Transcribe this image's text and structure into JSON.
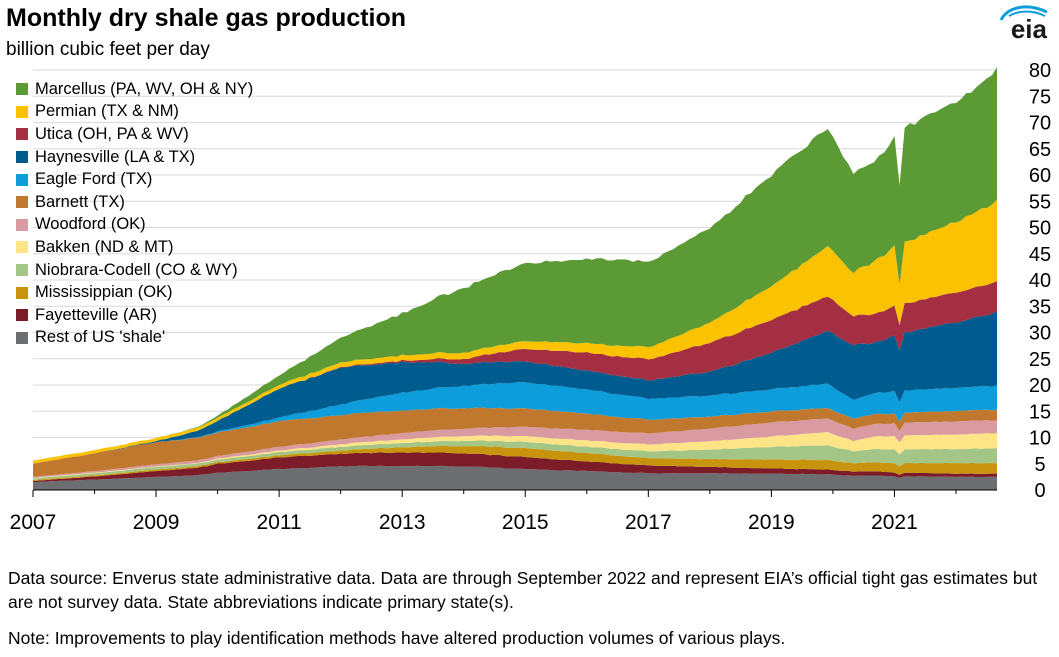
{
  "header": {
    "title": "Monthly dry shale gas production",
    "subtitle": "billion cubic feet per day",
    "logo_text": "eia"
  },
  "footer": {
    "source": "Data source: Enverus state administrative data. Data are through September 2022 and represent EIA’s official tight gas estimates but are not survey data. State abbreviations indicate primary state(s).",
    "note": "Note: Improvements to play identification methods have altered production volumes of various plays."
  },
  "chart_data": {
    "type": "area",
    "stacked": true,
    "x_start": "2007-01",
    "x_end": "2022-09",
    "x_tick_labels": [
      "2007",
      "2009",
      "2011",
      "2013",
      "2015",
      "2017",
      "2019",
      "2021"
    ],
    "ylim": [
      0,
      80
    ],
    "y_tick_labels": [
      "0",
      "5",
      "10",
      "15",
      "20",
      "25",
      "30",
      "35",
      "40",
      "45",
      "50",
      "55",
      "60",
      "65",
      "70",
      "75",
      "80"
    ],
    "y_axis_side": "right",
    "grid": true,
    "legend_position": "top-left",
    "keyframe_dates": [
      "2007-01",
      "2008-01",
      "2009-01",
      "2009-09",
      "2010-01",
      "2011-01",
      "2012-01",
      "2013-01",
      "2014-01",
      "2015-01",
      "2016-01",
      "2017-01",
      "2018-01",
      "2019-01",
      "2019-12",
      "2020-05",
      "2020-09",
      "2021-01",
      "2021-02",
      "2021-03",
      "2022-01",
      "2022-09"
    ],
    "series": [
      {
        "name": "Rest of US 'shale'",
        "color": "#6d6e71",
        "values": [
          1.5,
          2.0,
          2.5,
          2.8,
          3.3,
          4.0,
          4.5,
          4.6,
          4.5,
          4.0,
          3.6,
          3.2,
          3.2,
          3.1,
          3.0,
          2.7,
          2.8,
          2.6,
          2.3,
          2.6,
          2.5,
          2.5
        ]
      },
      {
        "name": "Fayetteville (AR)",
        "color": "#7b1c28",
        "values": [
          0.2,
          0.6,
          1.1,
          1.4,
          1.7,
          2.2,
          2.4,
          2.6,
          2.5,
          2.3,
          1.8,
          1.5,
          1.2,
          1.0,
          0.9,
          0.8,
          0.8,
          0.7,
          0.6,
          0.7,
          0.6,
          0.6
        ]
      },
      {
        "name": "Mississippian (OK)",
        "color": "#c8940e",
        "values": [
          0.2,
          0.2,
          0.3,
          0.3,
          0.3,
          0.4,
          0.6,
          1.0,
          1.4,
          1.7,
          1.6,
          1.4,
          1.5,
          1.7,
          1.8,
          1.6,
          1.7,
          1.8,
          1.6,
          1.8,
          2.0,
          2.0
        ]
      },
      {
        "name": "Niobrara-Codell (CO & WY)",
        "color": "#a3c585",
        "values": [
          0.3,
          0.4,
          0.5,
          0.5,
          0.5,
          0.6,
          0.7,
          0.8,
          1.0,
          1.2,
          1.2,
          1.3,
          1.8,
          2.4,
          2.8,
          2.3,
          2.5,
          2.6,
          2.3,
          2.6,
          2.7,
          2.8
        ]
      },
      {
        "name": "Bakken (ND & MT)",
        "color": "#fde487",
        "values": [
          0.1,
          0.1,
          0.1,
          0.1,
          0.2,
          0.3,
          0.5,
          0.7,
          0.9,
          1.1,
          1.2,
          1.3,
          1.6,
          2.0,
          2.5,
          2.0,
          2.4,
          2.6,
          2.3,
          2.7,
          2.8,
          2.9
        ]
      },
      {
        "name": "Woodford (OK)",
        "color": "#d99aa1",
        "values": [
          0.2,
          0.3,
          0.4,
          0.5,
          0.5,
          0.7,
          0.9,
          1.2,
          1.4,
          1.8,
          2.0,
          2.1,
          2.4,
          2.7,
          2.6,
          2.3,
          2.4,
          2.4,
          2.2,
          2.4,
          2.5,
          2.5
        ]
      },
      {
        "name": "Barnett (TX)",
        "color": "#c0782e",
        "values": [
          2.5,
          3.4,
          4.2,
          4.3,
          4.5,
          4.9,
          4.7,
          4.3,
          3.9,
          3.5,
          3.1,
          2.6,
          2.3,
          2.1,
          2.0,
          1.9,
          1.9,
          1.9,
          1.7,
          1.9,
          2.0,
          2.0
        ]
      },
      {
        "name": "Eagle Ford (TX)",
        "color": "#0d9dda",
        "values": [
          0.0,
          0.0,
          0.0,
          0.1,
          0.2,
          0.7,
          2.0,
          3.4,
          4.3,
          5.0,
          4.6,
          4.0,
          4.0,
          4.2,
          4.6,
          3.6,
          4.0,
          4.2,
          3.7,
          4.2,
          4.4,
          4.6
        ]
      },
      {
        "name": "Haynesville (LA & TX)",
        "color": "#005b8f",
        "values": [
          0.0,
          0.0,
          0.2,
          1.2,
          2.0,
          5.5,
          7.0,
          5.8,
          4.2,
          4.0,
          3.6,
          3.5,
          4.5,
          7.0,
          10.0,
          10.5,
          9.6,
          10.5,
          10.0,
          11.0,
          12.5,
          14.0
        ]
      },
      {
        "name": "Utica (OH, PA & WV)",
        "color": "#a52f42",
        "values": [
          0.0,
          0.0,
          0.0,
          0.0,
          0.0,
          0.0,
          0.1,
          0.3,
          0.9,
          2.4,
          3.4,
          4.0,
          5.5,
          6.3,
          6.6,
          5.5,
          5.5,
          5.6,
          4.7,
          5.5,
          5.7,
          5.8
        ]
      },
      {
        "name": "Permian (TX & NM)",
        "color": "#fac200",
        "values": [
          0.6,
          0.6,
          0.6,
          0.6,
          0.6,
          0.7,
          0.9,
          1.0,
          1.2,
          1.5,
          1.8,
          2.3,
          3.8,
          6.5,
          9.5,
          8.3,
          10.0,
          11.3,
          7.8,
          11.5,
          13.5,
          15.3
        ]
      },
      {
        "name": "Marcellus (PA, WV, OH & NY)",
        "color": "#5b9a35",
        "values": [
          0.0,
          0.0,
          0.0,
          0.1,
          0.4,
          1.8,
          4.7,
          8.0,
          12.4,
          14.8,
          16.2,
          16.3,
          18.0,
          21.2,
          22.6,
          18.9,
          19.0,
          20.6,
          19.0,
          21.9,
          23.0,
          24.8
        ]
      }
    ]
  }
}
